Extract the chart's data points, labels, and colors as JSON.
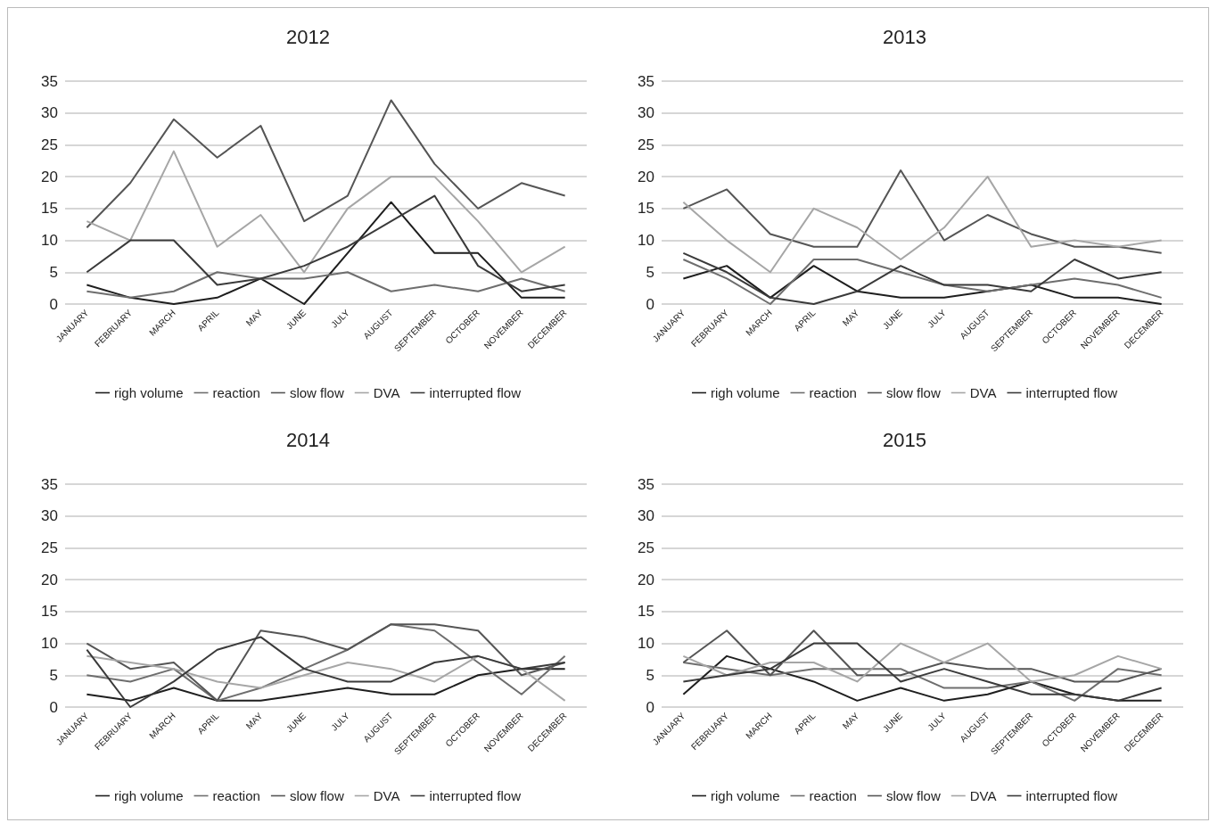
{
  "chart_data": [
    {
      "type": "line",
      "title": "2012",
      "categories": [
        "JANUARY",
        "FEBRUARY",
        "MARCH",
        "APRIL",
        "MAY",
        "JUNE",
        "JULY",
        "AUGUST",
        "SEPTEMBER",
        "OCTOBER",
        "NOVEMBER",
        "DECEMBER"
      ],
      "ylim": [
        0,
        35
      ],
      "yticks": [
        0,
        5,
        10,
        15,
        20,
        25,
        30,
        35
      ],
      "grid": "y",
      "legend": "bottom",
      "marker": "none",
      "series": [
        {
          "name": "righ volume",
          "color": "#1e1e1e",
          "values": [
            3,
            1,
            0,
            1,
            4,
            0,
            8,
            16,
            8,
            8,
            1,
            1
          ]
        },
        {
          "name": "reaction",
          "color": "#6e6e6e",
          "values": [
            2,
            1,
            2,
            5,
            4,
            4,
            5,
            2,
            3,
            2,
            4,
            2
          ]
        },
        {
          "name": "slow flow",
          "color": "#555555",
          "values": [
            12,
            19,
            29,
            23,
            28,
            13,
            17,
            32,
            22,
            15,
            19,
            17
          ]
        },
        {
          "name": "DVA",
          "color": "#a6a6a6",
          "values": [
            13,
            10,
            24,
            9,
            14,
            5,
            15,
            20,
            20,
            13,
            5,
            9
          ]
        },
        {
          "name": "interrupted flow",
          "color": "#3a3a3a",
          "values": [
            5,
            10,
            10,
            3,
            4,
            6,
            9,
            13,
            17,
            6,
            2,
            3
          ]
        }
      ]
    },
    {
      "type": "line",
      "title": "2013",
      "categories": [
        "JANUARY",
        "FEBRUARY",
        "MARCH",
        "APRIL",
        "MAY",
        "JUNE",
        "JULY",
        "AUGUST",
        "SEPTEMBER",
        "OCTOBER",
        "NOVEMBER",
        "DECEMBER"
      ],
      "ylim": [
        0,
        35
      ],
      "yticks": [
        0,
        5,
        10,
        15,
        20,
        25,
        30,
        35
      ],
      "grid": "y",
      "legend": "bottom",
      "marker": "none",
      "series": [
        {
          "name": "righ volume",
          "color": "#1e1e1e",
          "values": [
            4,
            6,
            1,
            6,
            2,
            1,
            1,
            2,
            3,
            1,
            1,
            0
          ]
        },
        {
          "name": "reaction",
          "color": "#6e6e6e",
          "values": [
            7,
            4,
            0,
            7,
            7,
            5,
            3,
            2,
            3,
            4,
            3,
            1
          ]
        },
        {
          "name": "slow flow",
          "color": "#555555",
          "values": [
            15,
            18,
            11,
            9,
            9,
            21,
            10,
            14,
            11,
            9,
            9,
            8
          ]
        },
        {
          "name": "DVA",
          "color": "#a6a6a6",
          "values": [
            16,
            10,
            5,
            15,
            12,
            7,
            12,
            20,
            9,
            10,
            9,
            10
          ]
        },
        {
          "name": "interrupted flow",
          "color": "#3a3a3a",
          "values": [
            8,
            5,
            1,
            0,
            2,
            6,
            3,
            3,
            2,
            7,
            4,
            5
          ]
        }
      ]
    },
    {
      "type": "line",
      "title": "2014",
      "categories": [
        "JANUARY",
        "FEBRUARY",
        "MARCH",
        "APRIL",
        "MAY",
        "JUNE",
        "JULY",
        "AUGUST",
        "SEPTEMBER",
        "OCTOBER",
        "NOVEMBER",
        "DECEMBER"
      ],
      "ylim": [
        0,
        35
      ],
      "yticks": [
        0,
        5,
        10,
        15,
        20,
        25,
        30,
        35
      ],
      "grid": "y",
      "legend": "bottom",
      "marker": "none",
      "series": [
        {
          "name": "righ volume",
          "color": "#1e1e1e",
          "values": [
            2,
            1,
            3,
            1,
            1,
            2,
            3,
            2,
            2,
            5,
            6,
            6
          ]
        },
        {
          "name": "reaction",
          "color": "#6e6e6e",
          "values": [
            5,
            4,
            6,
            1,
            3,
            6,
            9,
            13,
            12,
            7,
            2,
            8
          ]
        },
        {
          "name": "slow flow",
          "color": "#555555",
          "values": [
            10,
            6,
            7,
            1,
            12,
            11,
            9,
            13,
            13,
            12,
            5,
            7
          ]
        },
        {
          "name": "DVA",
          "color": "#a6a6a6",
          "values": [
            8,
            7,
            6,
            4,
            3,
            5,
            7,
            6,
            4,
            8,
            6,
            1
          ]
        },
        {
          "name": "interrupted flow",
          "color": "#3a3a3a",
          "values": [
            9,
            0,
            4,
            9,
            11,
            6,
            4,
            4,
            7,
            8,
            6,
            7
          ]
        }
      ]
    },
    {
      "type": "line",
      "title": "2015",
      "categories": [
        "JANUARY",
        "FEBRUARY",
        "MARCH",
        "APRIL",
        "MAY",
        "JUNE",
        "JULY",
        "AUGUST",
        "SEPTEMBER",
        "OCTOBER",
        "NOVEMBER",
        "DECEMBER"
      ],
      "ylim": [
        0,
        35
      ],
      "yticks": [
        0,
        5,
        10,
        15,
        20,
        25,
        30,
        35
      ],
      "grid": "y",
      "legend": "bottom",
      "marker": "none",
      "series": [
        {
          "name": "righ volume",
          "color": "#1e1e1e",
          "values": [
            2,
            8,
            6,
            4,
            1,
            3,
            1,
            2,
            4,
            2,
            1,
            1
          ]
        },
        {
          "name": "reaction",
          "color": "#6e6e6e",
          "values": [
            7,
            6,
            5,
            6,
            6,
            6,
            3,
            3,
            4,
            1,
            6,
            5
          ]
        },
        {
          "name": "slow flow",
          "color": "#555555",
          "values": [
            7,
            12,
            5,
            12,
            5,
            5,
            7,
            6,
            6,
            4,
            4,
            6
          ]
        },
        {
          "name": "DVA",
          "color": "#a6a6a6",
          "values": [
            8,
            5,
            7,
            7,
            4,
            10,
            7,
            10,
            4,
            5,
            8,
            6
          ]
        },
        {
          "name": "interrupted flow",
          "color": "#3a3a3a",
          "values": [
            4,
            5,
            6,
            10,
            10,
            4,
            6,
            4,
            2,
            2,
            1,
            3
          ]
        }
      ]
    }
  ]
}
